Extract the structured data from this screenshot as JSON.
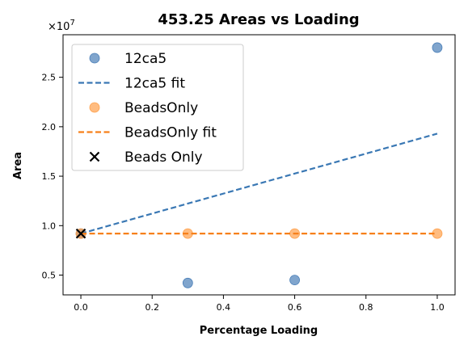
{
  "chart_data": {
    "type": "scatter",
    "title": "453.25 Areas vs Loading",
    "xlabel": "Percentage Loading",
    "ylabel": "Area",
    "y_multiplier": "×10",
    "y_exponent": "7",
    "xlim": [
      -0.05,
      1.05
    ],
    "ylim": [
      3.0,
      29.3
    ],
    "y_scale_factor": 10000000,
    "x_ticks": [
      0.0,
      0.2,
      0.4,
      0.6,
      0.8,
      1.0
    ],
    "x_tick_labels": [
      "0.0",
      "0.2",
      "0.4",
      "0.6",
      "0.8",
      "1.0"
    ],
    "y_ticks": [
      0.5,
      1.0,
      1.5,
      2.0,
      2.5
    ],
    "y_tick_labels": [
      "0.5",
      "1.0",
      "1.5",
      "2.0",
      "2.5"
    ],
    "grid": false,
    "legend_position": "top-left",
    "series": [
      {
        "name": "12ca5",
        "kind": "scatter",
        "color": "#4a7fb8",
        "x": [
          0.0,
          0.3,
          0.6,
          1.0
        ],
        "y": [
          9.2,
          4.2,
          4.5,
          28.0
        ]
      },
      {
        "name": "12ca5 fit",
        "kind": "line",
        "dashed": true,
        "color": "#3a78b4",
        "x": [
          0.0,
          1.0
        ],
        "y": [
          9.2,
          19.3
        ]
      },
      {
        "name": "BeadsOnly",
        "kind": "scatter",
        "color": "#ffa04a",
        "x": [
          0.0,
          0.3,
          0.6,
          1.0
        ],
        "y": [
          9.2,
          9.2,
          9.2,
          9.2
        ]
      },
      {
        "name": "BeadsOnly fit",
        "kind": "line",
        "dashed": true,
        "color": "#f7801a",
        "x": [
          0.0,
          1.0
        ],
        "y": [
          9.2,
          9.2
        ]
      },
      {
        "name": "Beads Only",
        "kind": "cross",
        "color": "#000000",
        "x": [
          0.0
        ],
        "y": [
          9.2
        ]
      }
    ]
  }
}
